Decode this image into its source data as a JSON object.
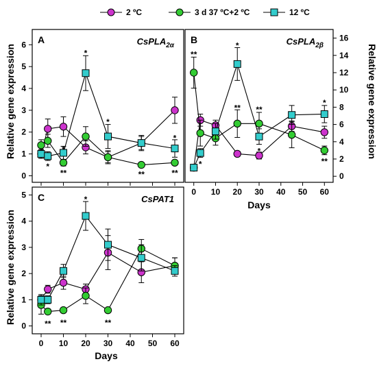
{
  "legend": [
    {
      "label": "2 ºC",
      "marker": "circle",
      "color": "#cc33cc"
    },
    {
      "label": "3 d 37 ºC+2 ºC",
      "marker": "circle",
      "color": "#33cc33"
    },
    {
      "label": "12 ºC",
      "marker": "square",
      "color": "#33cccc"
    }
  ],
  "shared_xlabel": "Days",
  "chart_data": [
    {
      "panel": "A",
      "gene_main": "CsPLA",
      "gene_sub": "2α",
      "type": "line",
      "ylabel": "Relative gene expression",
      "xlim": [
        -4,
        64
      ],
      "ylim": [
        -0.3,
        6.7
      ],
      "yticks": [
        0,
        1,
        2,
        3,
        4,
        5,
        6
      ],
      "xticks": [
        0,
        10,
        20,
        30,
        40,
        50,
        60
      ],
      "x_tick_labels_shown": false,
      "y_axis_side": "left",
      "series": [
        {
          "name": "2 ºC",
          "x": [
            0,
            3,
            10,
            20,
            30,
            45,
            60
          ],
          "y": [
            1.0,
            2.15,
            2.25,
            1.3,
            0.85,
            1.5,
            3.0
          ],
          "err": [
            0.2,
            0.45,
            0.45,
            0.3,
            0.3,
            0.3,
            0.6
          ]
        },
        {
          "name": "3 d 37 ºC+2 ºC",
          "x": [
            0,
            3,
            10,
            20,
            30,
            45,
            60
          ],
          "y": [
            1.4,
            1.6,
            0.6,
            1.8,
            0.85,
            0.5,
            0.6
          ],
          "err": [
            0.25,
            0.3,
            0.15,
            0.45,
            0.25,
            0.1,
            0.1
          ]
        },
        {
          "name": "12 ºC",
          "x": [
            0,
            3,
            10,
            20,
            30,
            45,
            60
          ],
          "y": [
            1.0,
            0.9,
            1.05,
            4.7,
            1.8,
            1.5,
            1.25
          ],
          "err": [
            0.2,
            0.2,
            0.3,
            0.8,
            0.55,
            0.35,
            0.4
          ]
        }
      ],
      "annotations": [
        {
          "text": "*",
          "x": 3,
          "y": 0.45
        },
        {
          "text": "*",
          "x": 10,
          "y": 1.25
        },
        {
          "text": "**",
          "x": 10,
          "y": 0.15
        },
        {
          "text": "*",
          "x": 20,
          "y": 5.65
        },
        {
          "text": "*",
          "x": 30,
          "y": 2.5
        },
        {
          "text": "**",
          "x": 45,
          "y": 0.1
        },
        {
          "text": "*",
          "x": 60,
          "y": 1.75
        },
        {
          "text": "**",
          "x": 60,
          "y": 0.15
        }
      ]
    },
    {
      "panel": "B",
      "gene_main": "CsPLA",
      "gene_sub": "2β",
      "type": "line",
      "ylabel": "Relative gene expression",
      "xlabel": "Days",
      "xlim": [
        -4,
        64
      ],
      "ylim": [
        -0.7,
        17
      ],
      "yticks": [
        0,
        2,
        4,
        6,
        8,
        10,
        12,
        14,
        16
      ],
      "xticks": [
        0,
        10,
        20,
        30,
        40,
        50,
        60
      ],
      "x_tick_labels_shown": true,
      "y_axis_side": "right",
      "series": [
        {
          "name": "2 ºC",
          "x": [
            0,
            3,
            10,
            20,
            30,
            45,
            60
          ],
          "y": [
            1.0,
            6.5,
            5.9,
            2.6,
            2.4,
            5.8,
            5.1
          ],
          "err": [
            0.2,
            0.7,
            0.6,
            0.3,
            0.4,
            0.6,
            0.7
          ]
        },
        {
          "name": "3 d 37 ºC+2 ºC",
          "x": [
            0,
            3,
            10,
            20,
            30,
            45,
            60
          ],
          "y": [
            12.0,
            5.0,
            4.4,
            6.1,
            6.1,
            4.8,
            3.0
          ],
          "err": [
            1.8,
            1.5,
            0.8,
            1.6,
            1.3,
            1.5,
            0.5
          ]
        },
        {
          "name": "12 ºC",
          "x": [
            0,
            3,
            10,
            20,
            30,
            45,
            60
          ],
          "y": [
            1.0,
            2.7,
            5.2,
            13.0,
            4.6,
            7.1,
            7.2
          ],
          "err": [
            0.2,
            0.5,
            0.9,
            1.9,
            0.9,
            1.1,
            1.0
          ]
        }
      ],
      "annotations": [
        {
          "text": "**",
          "x": 0,
          "y": 14.2
        },
        {
          "text": "*",
          "x": 3,
          "y": 1.5
        },
        {
          "text": "*",
          "x": 20,
          "y": 15.2
        },
        {
          "text": "**",
          "x": 20,
          "y": 8.0
        },
        {
          "text": "**",
          "x": 30,
          "y": 7.8
        },
        {
          "text": "*",
          "x": 30,
          "y": 3.0
        },
        {
          "text": "*",
          "x": 60,
          "y": 8.6
        },
        {
          "text": "**",
          "x": 60,
          "y": 1.8
        }
      ]
    },
    {
      "panel": "C",
      "gene_main": "CsPAT1",
      "gene_sub": "",
      "type": "line",
      "ylabel": "Relative gene expression",
      "xlabel": "Days",
      "xlim": [
        -4,
        64
      ],
      "ylim": [
        -0.3,
        5.3
      ],
      "yticks": [
        0,
        1,
        2,
        3,
        4,
        5
      ],
      "xticks": [
        0,
        10,
        20,
        30,
        40,
        50,
        60
      ],
      "x_tick_labels_shown": true,
      "y_axis_side": "left",
      "series": [
        {
          "name": "2 ºC",
          "x": [
            0,
            3,
            10,
            20,
            30,
            45,
            60
          ],
          "y": [
            1.0,
            1.4,
            1.65,
            1.4,
            2.8,
            2.05,
            2.3
          ],
          "err": [
            0.15,
            0.15,
            0.25,
            0.2,
            0.65,
            0.4,
            0.3
          ]
        },
        {
          "name": "3 d 37 ºC+2 ºC",
          "x": [
            0,
            3,
            10,
            20,
            30,
            45,
            60
          ],
          "y": [
            0.8,
            0.55,
            0.6,
            1.15,
            0.6,
            2.95,
            2.3
          ],
          "err": [
            0.35,
            0.1,
            0.1,
            0.3,
            0.05,
            0.35,
            0.3
          ]
        },
        {
          "name": "12 ºC",
          "x": [
            0,
            3,
            10,
            20,
            30,
            45,
            60
          ],
          "y": [
            1.0,
            1.0,
            2.1,
            4.2,
            3.1,
            2.6,
            2.1
          ],
          "err": [
            0.2,
            0.15,
            0.25,
            0.55,
            0.6,
            0.5,
            0.2
          ]
        }
      ],
      "annotations": [
        {
          "text": "**",
          "x": 3,
          "y": 0.1
        },
        {
          "text": "**",
          "x": 10,
          "y": 0.15
        },
        {
          "text": "*",
          "x": 20,
          "y": 4.85
        },
        {
          "text": "**",
          "x": 30,
          "y": 0.15
        }
      ]
    }
  ]
}
